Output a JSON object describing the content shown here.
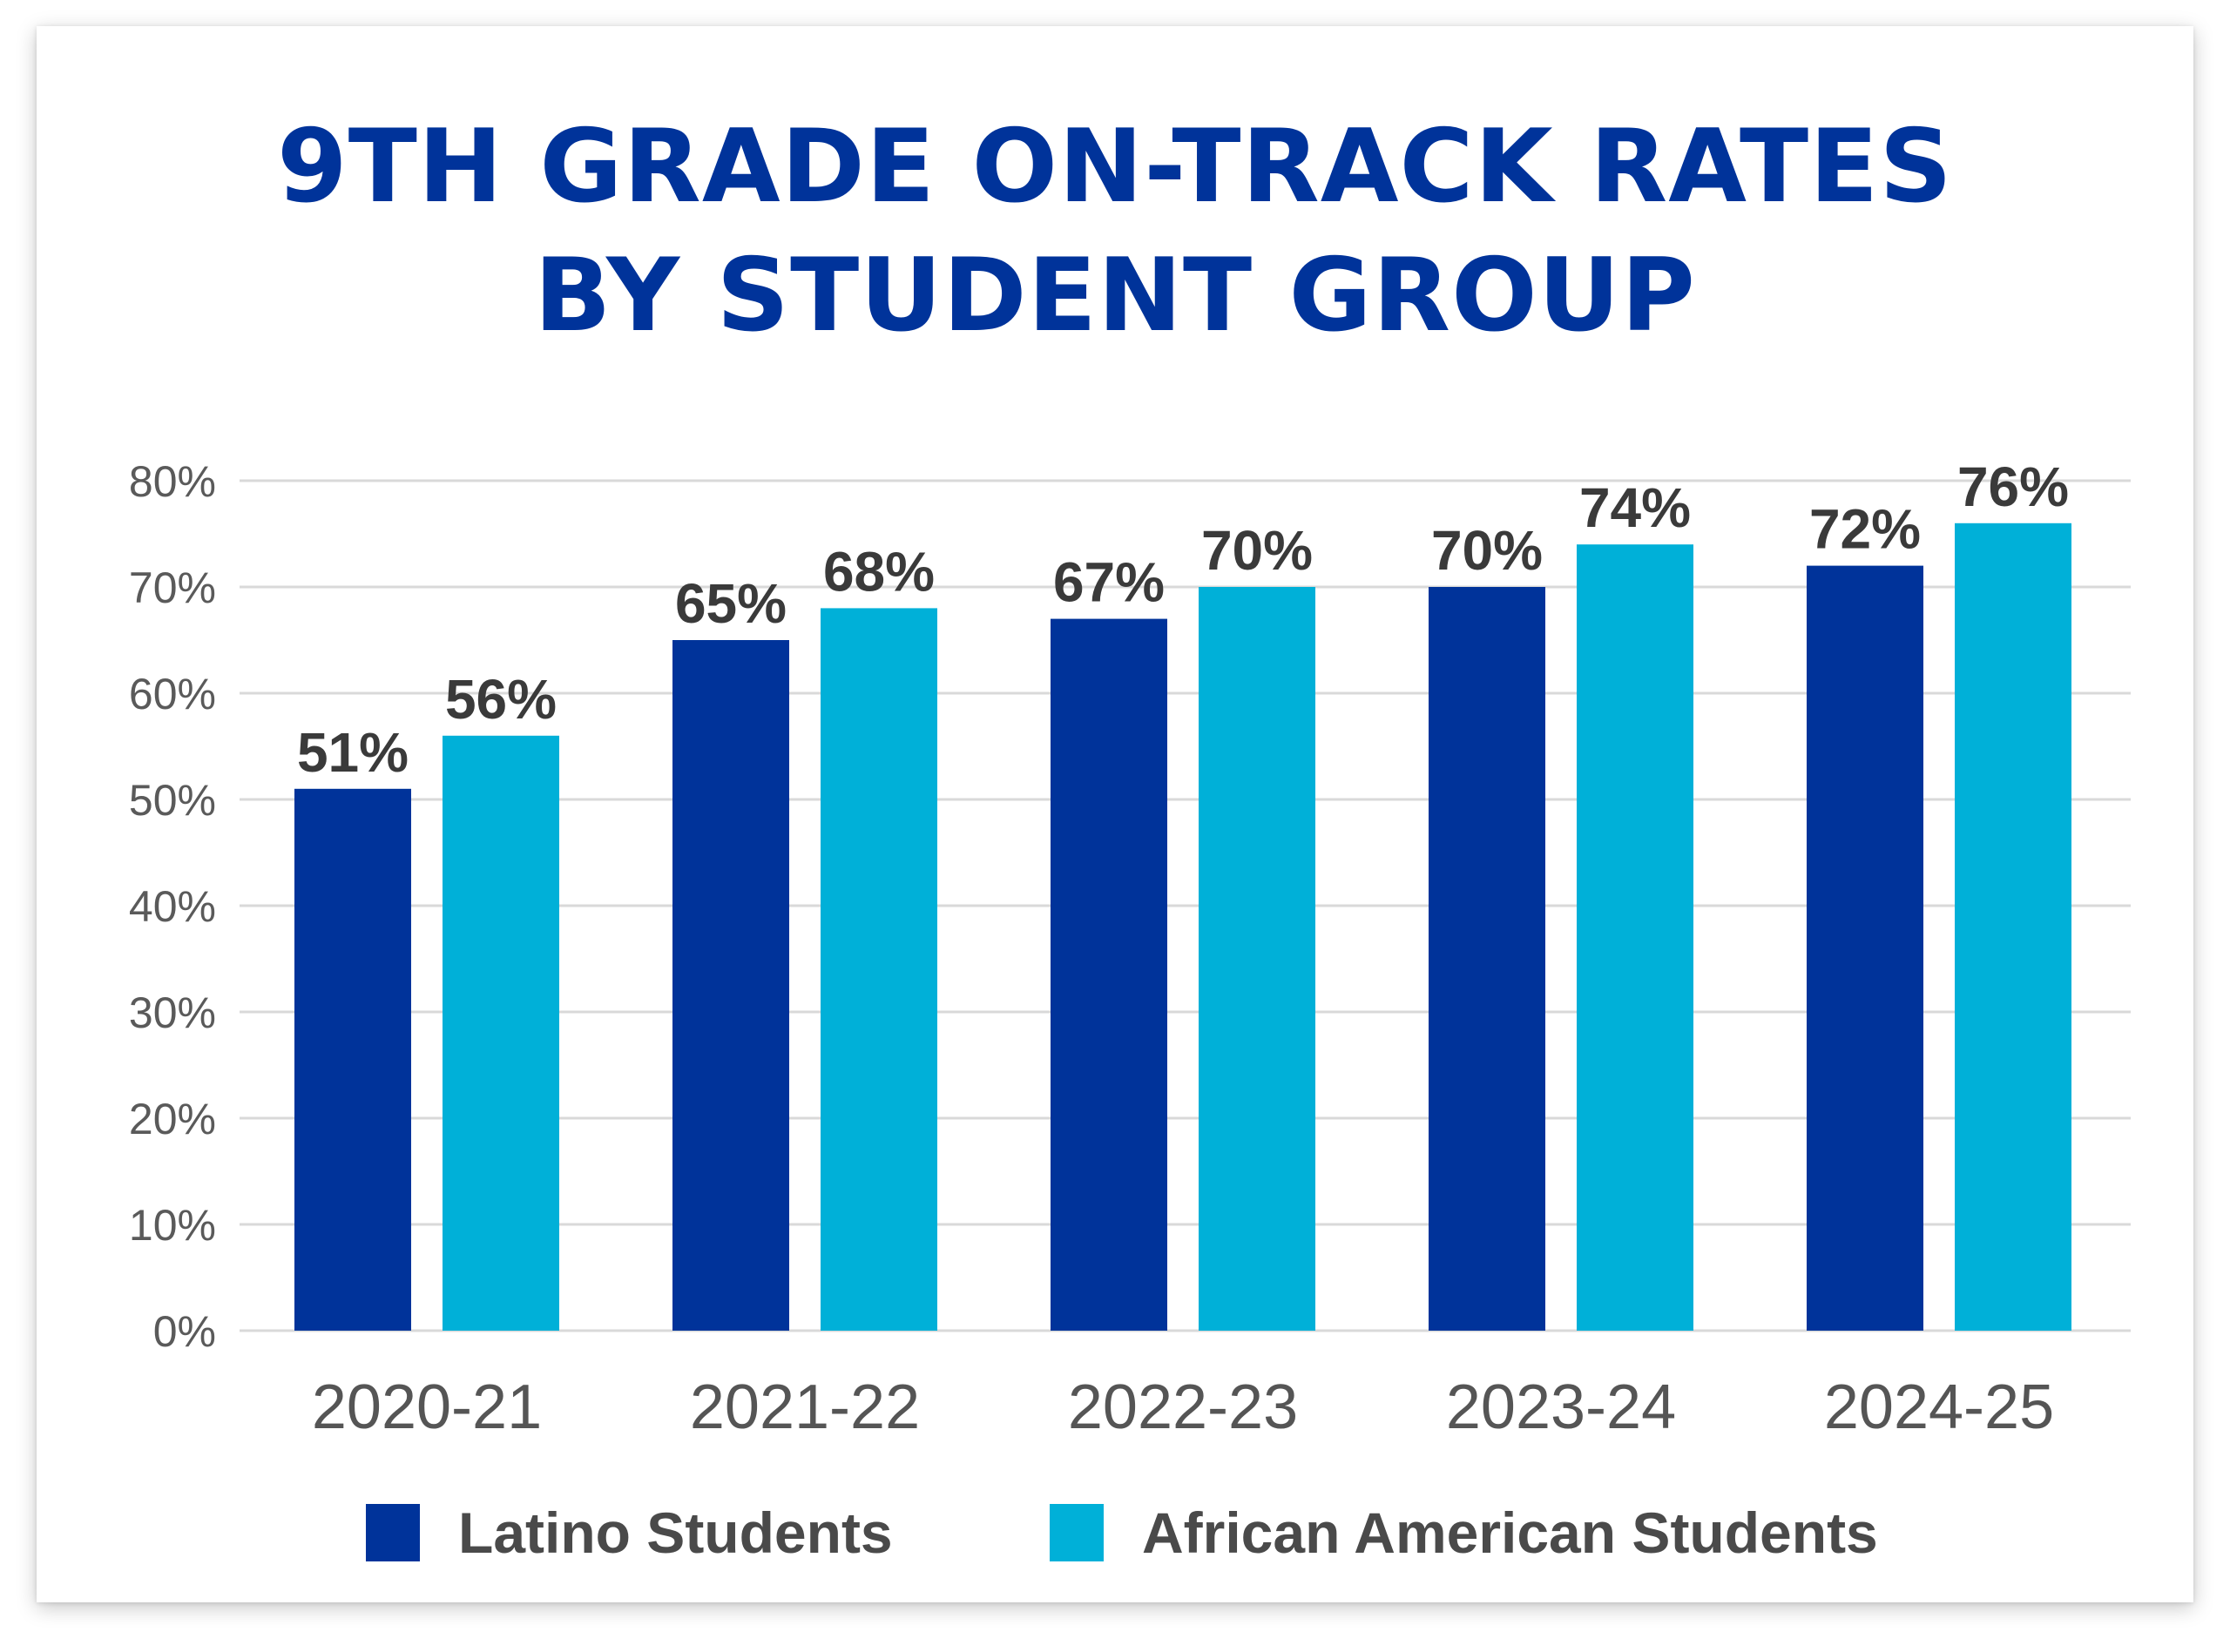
{
  "chart_data": {
    "type": "bar",
    "title_lines": [
      "9TH GRADE ON-TRACK RATES",
      "BY STUDENT GROUP"
    ],
    "categories": [
      "2020-21",
      "2021-22",
      "2022-23",
      "2023-24",
      "2024-25"
    ],
    "series": [
      {
        "name": "Latino Students",
        "color": "#00339a",
        "values": [
          51,
          65,
          67,
          70,
          72
        ],
        "labels": [
          "51%",
          "65%",
          "67%",
          "70%",
          "72%"
        ]
      },
      {
        "name": "African American Students",
        "color": "#00b0d8",
        "values": [
          56,
          68,
          70,
          74,
          76
        ],
        "labels": [
          "56%",
          "68%",
          "70%",
          "74%",
          "76%"
        ]
      }
    ],
    "ylim": [
      0,
      80
    ],
    "yticks": [
      0,
      10,
      20,
      30,
      40,
      50,
      60,
      70,
      80
    ],
    "ytick_labels": [
      "0%",
      "10%",
      "20%",
      "30%",
      "40%",
      "50%",
      "60%",
      "70%",
      "80%"
    ],
    "xlabel": "",
    "ylabel": "",
    "grid": true,
    "gridline_color": "#d9d9d9",
    "legend_position": "bottom"
  }
}
